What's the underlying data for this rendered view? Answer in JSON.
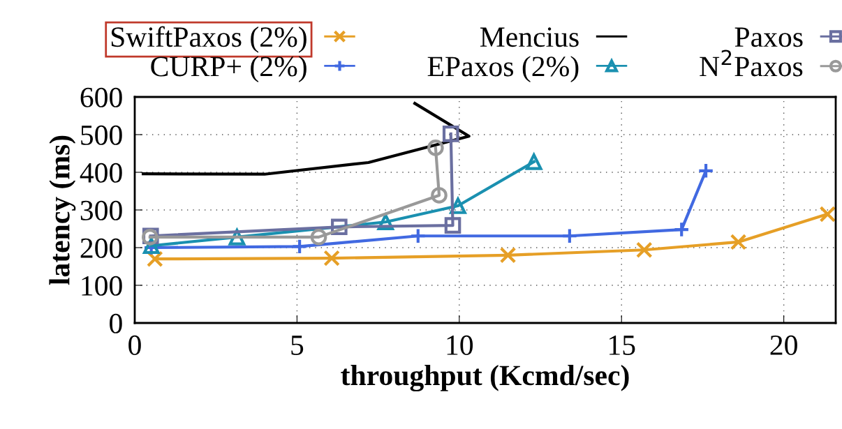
{
  "chart_data": {
    "type": "line",
    "xlabel": "throughput (Kcmd/sec)",
    "ylabel": "latency (ms)",
    "xlim": [
      0,
      21.6
    ],
    "xticks": [
      0,
      5,
      10,
      15,
      20
    ],
    "ylim": [
      0,
      600
    ],
    "yticks": [
      0,
      100,
      200,
      300,
      400,
      500,
      600
    ],
    "grid": true,
    "legend": "top",
    "line_style": "solid",
    "series": [
      {
        "name": "SwiftPaxos (2%)",
        "color": "#e69f26",
        "marker": "cross",
        "x": [
          0.62,
          6.07,
          11.5,
          15.7,
          18.6,
          21.35
        ],
        "values": [
          170,
          172,
          180,
          194,
          215,
          289
        ]
      },
      {
        "name": "CURP+ (2%)",
        "color": "#4169e1",
        "marker": "plus",
        "x": [
          0.51,
          5.08,
          8.73,
          13.4,
          16.85,
          17.6
        ],
        "values": [
          200,
          203,
          231,
          231,
          248,
          404
        ]
      },
      {
        "name": "Mencius",
        "color": "#000000",
        "marker": "none",
        "x": [
          0.26,
          4.0,
          7.2,
          10.3,
          8.63
        ],
        "values": [
          396,
          395,
          426,
          496,
          583
        ]
      },
      {
        "name": "EPaxos (2%)",
        "color": "#1a90b0",
        "marker": "triangle",
        "x": [
          0.51,
          3.15,
          7.73,
          9.96,
          12.3
        ],
        "values": [
          205,
          228,
          268,
          311,
          428
        ]
      },
      {
        "name": "Paxos",
        "color": "#6a6fa0",
        "marker": "square",
        "x": [
          0.49,
          6.3,
          9.8,
          9.74
        ],
        "values": [
          231,
          255,
          259,
          502
        ]
      },
      {
        "name": "N$^{2}$Paxos",
        "color": "#999999",
        "marker": "circle",
        "x": [
          0.47,
          5.67,
          9.38,
          9.27
        ],
        "values": [
          228,
          228,
          339,
          465
        ]
      }
    ]
  }
}
